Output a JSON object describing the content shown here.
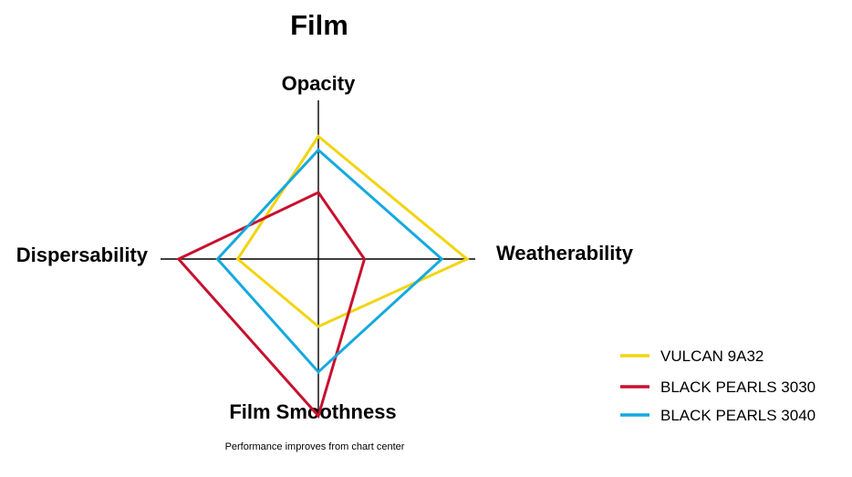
{
  "chart_data": {
    "type": "radar",
    "title": "Film",
    "axes": [
      "Opacity",
      "Weatherability",
      "Film Smoothness",
      "Dispersability"
    ],
    "range": [
      0,
      100
    ],
    "series": [
      {
        "name": "VULCAN 9A32",
        "color": "#f2d410",
        "values": [
          81,
          100,
          43,
          56
        ]
      },
      {
        "name": "BLACK PEARLS 3030",
        "color": "#c8102e",
        "values": [
          44,
          31,
          100,
          97
        ]
      },
      {
        "name": "BLACK PEARLS 3040",
        "color": "#14a9de",
        "values": [
          72,
          83,
          72,
          70
        ]
      }
    ],
    "footnote": "Performance improves from chart center",
    "legend_position": "bottom-right"
  }
}
